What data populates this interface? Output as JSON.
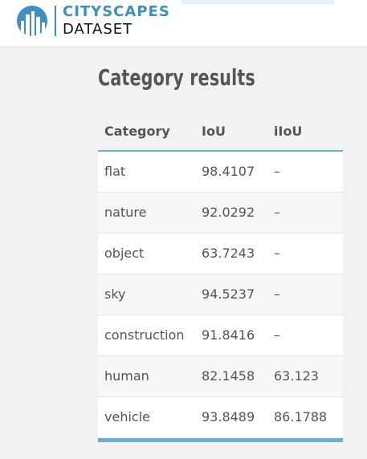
{
  "header": {
    "logo_line1": "CITYSCAPES",
    "logo_line2": "DATASET",
    "logo_icon": "city-skyline-circle-icon",
    "brand_color": "#3f8fc3"
  },
  "page_title": "Category results",
  "table": {
    "columns": [
      "Category",
      "IoU",
      "iIoU"
    ],
    "rows": [
      {
        "category": "flat",
        "iou": "98.4107",
        "iiou": "–"
      },
      {
        "category": "nature",
        "iou": "92.0292",
        "iiou": "–"
      },
      {
        "category": "object",
        "iou": "63.7243",
        "iiou": "–"
      },
      {
        "category": "sky",
        "iou": "94.5237",
        "iiou": "–"
      },
      {
        "category": "construction",
        "iou": "91.8416",
        "iiou": "–"
      },
      {
        "category": "human",
        "iou": "82.1458",
        "iiou": "63.123"
      },
      {
        "category": "vehicle",
        "iou": "93.8489",
        "iiou": "86.1788"
      }
    ],
    "accent_color": "#6ab0d6"
  }
}
